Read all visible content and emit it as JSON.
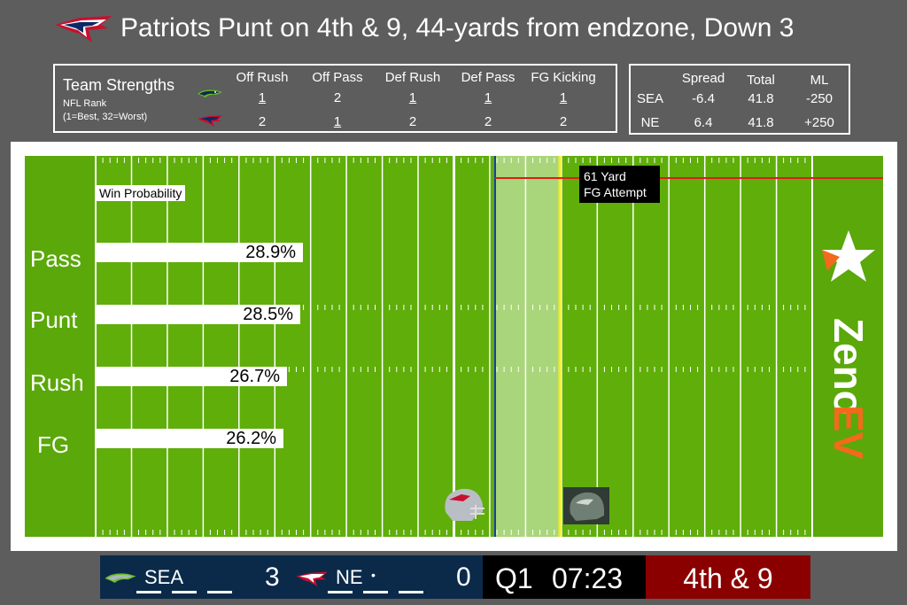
{
  "header": {
    "title": "Patriots Punt on 4th & 9, 44-yards from endzone, Down 3",
    "logo_icon": "patriots-logo-icon"
  },
  "team_strengths": {
    "title": "Team Strengths",
    "subtitle_1": "NFL Rank",
    "subtitle_2": "(1=Best, 32=Worst)",
    "columns": [
      "Off Rush",
      "Off Pass",
      "Def Rush",
      "Def Pass",
      "FG Kicking"
    ],
    "rows": [
      {
        "team_icon": "seahawks-logo-icon",
        "values": [
          "1",
          "2",
          "1",
          "1",
          "1"
        ],
        "underline": [
          true,
          false,
          true,
          true,
          true
        ]
      },
      {
        "team_icon": "patriots-logo-icon",
        "values": [
          "2",
          "1",
          "2",
          "2",
          "2"
        ],
        "underline": [
          false,
          true,
          false,
          false,
          false
        ]
      }
    ]
  },
  "odds": {
    "columns": [
      "Spread",
      "Total",
      "ML"
    ],
    "rows": [
      {
        "team": "SEA",
        "spread": "-6.4",
        "total": "41.8",
        "ml": "-250"
      },
      {
        "team": "NE",
        "spread": "6.4",
        "total": "41.8",
        "ml": "+250"
      }
    ]
  },
  "field": {
    "win_probability_label": "Win Probability",
    "fg_attempt_line1": "61 Yard",
    "fg_attempt_line2": "FG Attempt",
    "brand_text_1": "Zeno",
    "brand_text_2": "EV",
    "colors": {
      "turf": "#5fae0a",
      "first_down_line": "#f2ee1c",
      "scrimmage_line": "#1a3da8",
      "fg_line": "#e01b1b",
      "brand_orange": "#f26a1b"
    }
  },
  "plays": [
    {
      "label": "Pass",
      "value": "28.9%",
      "prob": 0.289
    },
    {
      "label": "Punt",
      "value": "28.5%",
      "prob": 0.285
    },
    {
      "label": "Rush",
      "value": "26.7%",
      "prob": 0.267
    },
    {
      "label": "FG",
      "value": "26.2%",
      "prob": 0.262
    }
  ],
  "scoreboard": {
    "away_team": "SEA",
    "away_score": "3",
    "home_team": "NE",
    "home_score": "0",
    "possession_marker": "•",
    "quarter": "Q1",
    "clock": "07:23",
    "down_distance": "4th & 9"
  }
}
